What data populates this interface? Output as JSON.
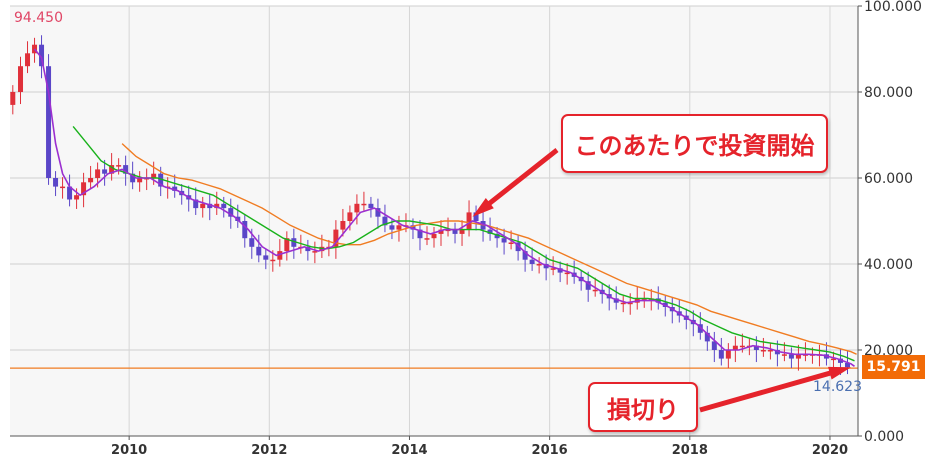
{
  "chart_data": {
    "type": "candlestick",
    "x_axis": {
      "min": 2008.3,
      "max": 2020.4,
      "ticks": [
        "2010",
        "2012",
        "2014",
        "2016",
        "2018",
        "2020"
      ]
    },
    "y_axis": {
      "min": 0,
      "max": 100,
      "ticks": [
        "0.000",
        "20.000",
        "40.000",
        "60.000",
        "80.000",
        "100.000"
      ],
      "position": "right",
      "grid": true
    },
    "colors": {
      "up": "#e0303a",
      "down": "#5a46c8",
      "ma_short": "#9b2fd0",
      "ma_mid": "#19b21b",
      "ma_long": "#f07c22",
      "price_line": "#f07c22",
      "price_tag": "#f26b07",
      "high_label": "#e04666",
      "low_label": "#4a6fb0",
      "callout": "#e5232b"
    },
    "high_label": "94.450",
    "low_label": "14.623",
    "current_price": 15.791,
    "current_price_label": "15.791",
    "close_series": [
      [
        2008.34,
        80
      ],
      [
        2008.45,
        86
      ],
      [
        2008.55,
        89
      ],
      [
        2008.65,
        91
      ],
      [
        2008.75,
        86
      ],
      [
        2008.85,
        60
      ],
      [
        2008.95,
        58
      ],
      [
        2009.05,
        58
      ],
      [
        2009.15,
        55
      ],
      [
        2009.25,
        56
      ],
      [
        2009.35,
        59
      ],
      [
        2009.45,
        60
      ],
      [
        2009.55,
        62
      ],
      [
        2009.65,
        61
      ],
      [
        2009.75,
        63
      ],
      [
        2009.85,
        63
      ],
      [
        2009.95,
        61
      ],
      [
        2010.05,
        59
      ],
      [
        2010.15,
        60
      ],
      [
        2010.25,
        60
      ],
      [
        2010.35,
        61
      ],
      [
        2010.45,
        58
      ],
      [
        2010.55,
        58
      ],
      [
        2010.65,
        57
      ],
      [
        2010.75,
        56
      ],
      [
        2010.85,
        55
      ],
      [
        2010.95,
        53
      ],
      [
        2011.05,
        54
      ],
      [
        2011.15,
        53
      ],
      [
        2011.25,
        54
      ],
      [
        2011.35,
        53
      ],
      [
        2011.45,
        51
      ],
      [
        2011.55,
        50
      ],
      [
        2011.65,
        46
      ],
      [
        2011.75,
        44
      ],
      [
        2011.85,
        42
      ],
      [
        2011.95,
        41
      ],
      [
        2012.05,
        41
      ],
      [
        2012.15,
        43
      ],
      [
        2012.25,
        46
      ],
      [
        2012.35,
        44
      ],
      [
        2012.45,
        44
      ],
      [
        2012.55,
        43
      ],
      [
        2012.65,
        43
      ],
      [
        2012.75,
        44
      ],
      [
        2012.85,
        44
      ],
      [
        2012.95,
        48
      ],
      [
        2013.05,
        50
      ],
      [
        2013.15,
        52
      ],
      [
        2013.25,
        54
      ],
      [
        2013.35,
        54
      ],
      [
        2013.45,
        53
      ],
      [
        2013.55,
        51
      ],
      [
        2013.65,
        49
      ],
      [
        2013.75,
        48
      ],
      [
        2013.85,
        49
      ],
      [
        2013.95,
        49
      ],
      [
        2014.05,
        48
      ],
      [
        2014.15,
        46
      ],
      [
        2014.25,
        46
      ],
      [
        2014.35,
        47
      ],
      [
        2014.45,
        48
      ],
      [
        2014.55,
        48
      ],
      [
        2014.65,
        47
      ],
      [
        2014.75,
        48
      ],
      [
        2014.85,
        52
      ],
      [
        2014.95,
        50
      ],
      [
        2015.05,
        48
      ],
      [
        2015.15,
        47
      ],
      [
        2015.25,
        46
      ],
      [
        2015.35,
        45
      ],
      [
        2015.45,
        45
      ],
      [
        2015.55,
        43
      ],
      [
        2015.65,
        41
      ],
      [
        2015.75,
        40
      ],
      [
        2015.85,
        40
      ],
      [
        2015.95,
        39
      ],
      [
        2016.05,
        39
      ],
      [
        2016.15,
        38
      ],
      [
        2016.25,
        38
      ],
      [
        2016.35,
        37
      ],
      [
        2016.45,
        36
      ],
      [
        2016.55,
        34
      ],
      [
        2016.65,
        34
      ],
      [
        2016.75,
        33
      ],
      [
        2016.85,
        32
      ],
      [
        2016.95,
        31
      ],
      [
        2017.05,
        31
      ],
      [
        2017.15,
        31
      ],
      [
        2017.25,
        32
      ],
      [
        2017.35,
        32
      ],
      [
        2017.45,
        32
      ],
      [
        2017.55,
        31
      ],
      [
        2017.65,
        30
      ],
      [
        2017.75,
        29
      ],
      [
        2017.85,
        28
      ],
      [
        2017.95,
        27
      ],
      [
        2018.05,
        26
      ],
      [
        2018.15,
        24
      ],
      [
        2018.25,
        22
      ],
      [
        2018.35,
        20
      ],
      [
        2018.45,
        18
      ],
      [
        2018.55,
        20
      ],
      [
        2018.65,
        21
      ],
      [
        2018.75,
        21
      ],
      [
        2018.85,
        21
      ],
      [
        2018.95,
        20
      ],
      [
        2019.05,
        20
      ],
      [
        2019.15,
        20
      ],
      [
        2019.25,
        19
      ],
      [
        2019.35,
        19
      ],
      [
        2019.45,
        18
      ],
      [
        2019.55,
        19
      ],
      [
        2019.65,
        19
      ],
      [
        2019.75,
        19
      ],
      [
        2019.85,
        19
      ],
      [
        2019.95,
        18
      ],
      [
        2020.05,
        18
      ],
      [
        2020.15,
        17
      ],
      [
        2020.25,
        16
      ]
    ],
    "ma_short": [
      [
        2008.65,
        90
      ],
      [
        2008.75,
        88
      ],
      [
        2008.85,
        80
      ],
      [
        2008.95,
        68
      ],
      [
        2009.05,
        61
      ],
      [
        2009.15,
        58
      ],
      [
        2009.3,
        56
      ],
      [
        2009.5,
        58
      ],
      [
        2009.7,
        61
      ],
      [
        2009.9,
        62
      ],
      [
        2010.1,
        60
      ],
      [
        2010.3,
        60
      ],
      [
        2010.5,
        58
      ],
      [
        2010.7,
        57
      ],
      [
        2010.9,
        55
      ],
      [
        2011.1,
        54
      ],
      [
        2011.3,
        53
      ],
      [
        2011.5,
        51
      ],
      [
        2011.7,
        48
      ],
      [
        2011.9,
        44
      ],
      [
        2012.1,
        42
      ],
      [
        2012.3,
        43
      ],
      [
        2012.5,
        44
      ],
      [
        2012.7,
        43
      ],
      [
        2012.9,
        44
      ],
      [
        2013.1,
        48
      ],
      [
        2013.3,
        52
      ],
      [
        2013.5,
        53
      ],
      [
        2013.7,
        51
      ],
      [
        2013.9,
        49
      ],
      [
        2014.1,
        48
      ],
      [
        2014.3,
        47
      ],
      [
        2014.5,
        48
      ],
      [
        2014.7,
        48
      ],
      [
        2014.9,
        50
      ],
      [
        2015.1,
        49
      ],
      [
        2015.3,
        47
      ],
      [
        2015.5,
        45
      ],
      [
        2015.7,
        42
      ],
      [
        2015.9,
        40
      ],
      [
        2016.1,
        39
      ],
      [
        2016.3,
        38
      ],
      [
        2016.5,
        36
      ],
      [
        2016.7,
        34
      ],
      [
        2016.9,
        32
      ],
      [
        2017.1,
        31
      ],
      [
        2017.3,
        31.5
      ],
      [
        2017.5,
        31.5
      ],
      [
        2017.7,
        30
      ],
      [
        2017.9,
        28
      ],
      [
        2018.1,
        26
      ],
      [
        2018.3,
        23
      ],
      [
        2018.5,
        20
      ],
      [
        2018.7,
        20
      ],
      [
        2018.9,
        21
      ],
      [
        2019.1,
        20.5
      ],
      [
        2019.3,
        19.5
      ],
      [
        2019.5,
        19
      ],
      [
        2019.7,
        19
      ],
      [
        2019.9,
        18.8
      ],
      [
        2020.1,
        18
      ],
      [
        2020.3,
        16.8
      ],
      [
        2020.35,
        16.2
      ]
    ],
    "ma_mid": [
      [
        2009.2,
        72
      ],
      [
        2009.4,
        68
      ],
      [
        2009.6,
        64
      ],
      [
        2009.8,
        62
      ],
      [
        2010.0,
        61
      ],
      [
        2010.2,
        60
      ],
      [
        2010.4,
        60
      ],
      [
        2010.6,
        59
      ],
      [
        2010.8,
        58
      ],
      [
        2011.0,
        57
      ],
      [
        2011.2,
        56
      ],
      [
        2011.4,
        54
      ],
      [
        2011.6,
        52
      ],
      [
        2011.8,
        50
      ],
      [
        2012.0,
        48
      ],
      [
        2012.2,
        46
      ],
      [
        2012.4,
        45
      ],
      [
        2012.6,
        44
      ],
      [
        2012.8,
        43.5
      ],
      [
        2013.0,
        44
      ],
      [
        2013.2,
        45
      ],
      [
        2013.4,
        47
      ],
      [
        2013.6,
        49
      ],
      [
        2013.8,
        50
      ],
      [
        2014.0,
        50
      ],
      [
        2014.2,
        49.5
      ],
      [
        2014.4,
        49
      ],
      [
        2014.6,
        48
      ],
      [
        2014.8,
        48
      ],
      [
        2015.0,
        48
      ],
      [
        2015.2,
        47
      ],
      [
        2015.4,
        46
      ],
      [
        2015.6,
        45
      ],
      [
        2015.8,
        43
      ],
      [
        2016.0,
        41
      ],
      [
        2016.2,
        40
      ],
      [
        2016.4,
        39
      ],
      [
        2016.6,
        37
      ],
      [
        2016.8,
        35
      ],
      [
        2017.0,
        33
      ],
      [
        2017.2,
        32
      ],
      [
        2017.4,
        32
      ],
      [
        2017.6,
        31.5
      ],
      [
        2017.8,
        30.5
      ],
      [
        2018.0,
        29
      ],
      [
        2018.2,
        27
      ],
      [
        2018.4,
        25.5
      ],
      [
        2018.6,
        24
      ],
      [
        2018.8,
        23
      ],
      [
        2019.0,
        22
      ],
      [
        2019.2,
        21.5
      ],
      [
        2019.4,
        21
      ],
      [
        2019.6,
        20.5
      ],
      [
        2019.8,
        20
      ],
      [
        2020.0,
        19.5
      ],
      [
        2020.2,
        18.5
      ],
      [
        2020.35,
        17.5
      ]
    ],
    "ma_long": [
      [
        2009.9,
        68
      ],
      [
        2010.1,
        65
      ],
      [
        2010.3,
        63
      ],
      [
        2010.5,
        61
      ],
      [
        2010.7,
        60
      ],
      [
        2010.9,
        59.5
      ],
      [
        2011.1,
        58.5
      ],
      [
        2011.3,
        57.5
      ],
      [
        2011.5,
        56
      ],
      [
        2011.7,
        54.5
      ],
      [
        2011.9,
        53
      ],
      [
        2012.1,
        51
      ],
      [
        2012.3,
        49
      ],
      [
        2012.5,
        47.5
      ],
      [
        2012.7,
        46
      ],
      [
        2012.9,
        45
      ],
      [
        2013.1,
        44.5
      ],
      [
        2013.3,
        44.5
      ],
      [
        2013.5,
        45.5
      ],
      [
        2013.7,
        47
      ],
      [
        2013.9,
        48
      ],
      [
        2014.1,
        49
      ],
      [
        2014.3,
        49.5
      ],
      [
        2014.5,
        50
      ],
      [
        2014.7,
        50
      ],
      [
        2014.9,
        49.5
      ],
      [
        2015.1,
        49
      ],
      [
        2015.3,
        48
      ],
      [
        2015.5,
        47
      ],
      [
        2015.7,
        46
      ],
      [
        2015.9,
        44.5
      ],
      [
        2016.1,
        43
      ],
      [
        2016.3,
        41.5
      ],
      [
        2016.5,
        40
      ],
      [
        2016.7,
        38.5
      ],
      [
        2016.9,
        37
      ],
      [
        2017.1,
        35.5
      ],
      [
        2017.3,
        34.5
      ],
      [
        2017.5,
        33.5
      ],
      [
        2017.7,
        32.5
      ],
      [
        2017.9,
        31.5
      ],
      [
        2018.1,
        30.5
      ],
      [
        2018.3,
        29
      ],
      [
        2018.5,
        28
      ],
      [
        2018.7,
        27
      ],
      [
        2018.9,
        26
      ],
      [
        2019.1,
        25
      ],
      [
        2019.3,
        24
      ],
      [
        2019.5,
        23
      ],
      [
        2019.7,
        22
      ],
      [
        2019.9,
        21.3
      ],
      [
        2020.1,
        20.5
      ],
      [
        2020.3,
        19.6
      ],
      [
        2020.38,
        19
      ]
    ],
    "annotations": [
      {
        "text": "このあたりで投資開始",
        "target": [
          2014.9,
          51
        ]
      },
      {
        "text": "損切り",
        "target": [
          2020.3,
          16
        ]
      }
    ]
  }
}
